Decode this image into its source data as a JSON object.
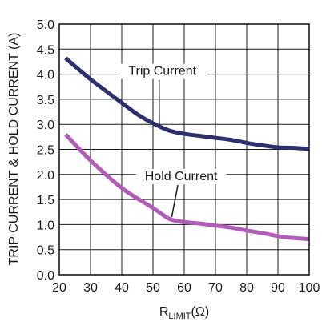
{
  "chart_data": {
    "type": "line",
    "xlabel": {
      "main": "R",
      "sub": "LIMIT",
      "unit": "(Ω)"
    },
    "ylabel": "TRIP CURRENT & HOLD CURRENT (A)",
    "xlim": [
      20,
      100
    ],
    "ylim": [
      0,
      5
    ],
    "xticks": [
      20,
      30,
      40,
      50,
      60,
      70,
      80,
      90,
      100
    ],
    "yticks": [
      "0.0",
      "0.5",
      "1.0",
      "1.5",
      "2.0",
      "2.5",
      "3.0",
      "3.5",
      "4.0",
      "4.5",
      "5.0"
    ],
    "grid": true,
    "legend": "none",
    "series": [
      {
        "name": "Trip Current",
        "color": "#2e2f6e",
        "x": [
          22,
          30,
          40,
          45,
          50,
          55,
          60,
          65,
          70,
          75,
          80,
          85,
          90,
          95,
          100
        ],
        "y": [
          4.32,
          3.9,
          3.43,
          3.2,
          3.02,
          2.88,
          2.81,
          2.77,
          2.73,
          2.69,
          2.63,
          2.58,
          2.54,
          2.53,
          2.51
        ]
      },
      {
        "name": "Hold Current",
        "color": "#b05cb8",
        "x": [
          22,
          30,
          40,
          50,
          55,
          58,
          60,
          65,
          70,
          75,
          80,
          85,
          90,
          95,
          100
        ],
        "y": [
          2.8,
          2.28,
          1.73,
          1.33,
          1.12,
          1.07,
          1.05,
          1.02,
          0.98,
          0.94,
          0.88,
          0.83,
          0.77,
          0.73,
          0.71
        ]
      }
    ],
    "annotations": [
      {
        "text": "Trip Current",
        "series": 0,
        "anchor_x": 52,
        "anchor_y": 2.96,
        "label_x": 53,
        "label_y": 4.0
      },
      {
        "text": "Hold Current",
        "series": 1,
        "anchor_x": 56,
        "anchor_y": 1.15,
        "label_x": 59,
        "label_y": 1.9
      }
    ]
  }
}
